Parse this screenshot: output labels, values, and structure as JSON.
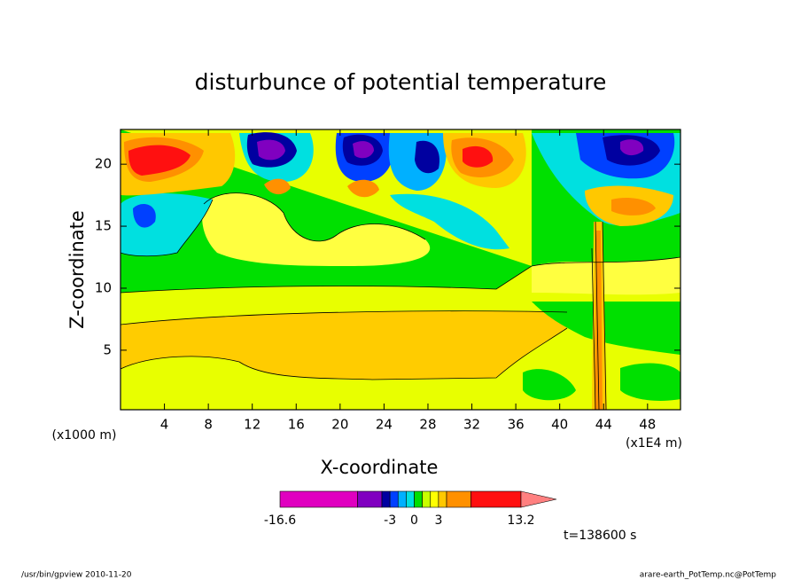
{
  "chart_data": {
    "type": "contour",
    "title": "disturbunce of potential temperature",
    "xlabel": "X-coordinate",
    "ylabel": "Z-coordinate",
    "xunit": "(x1E4 m)",
    "yunit": "(x1000 m)",
    "xlim": [
      0,
      51
    ],
    "xticks": [
      4,
      8,
      12,
      16,
      20,
      24,
      28,
      32,
      36,
      40,
      44,
      48
    ],
    "ylim": [
      0.2,
      22.8
    ],
    "yticks": [
      5,
      10,
      15,
      20
    ],
    "colorbar": {
      "levels": [
        -16.6,
        -7,
        -4,
        -3,
        -2,
        -1,
        0,
        1,
        2,
        3,
        4,
        7,
        13.2
      ],
      "colors": [
        "#e000c0",
        "#8000c0",
        "#0000a0",
        "#0040ff",
        "#00b0ff",
        "#00e0e0",
        "#00e000",
        "#c8ff00",
        "#ffff00",
        "#ffc800",
        "#ff9000",
        "#ff1010"
      ],
      "extend_color": "#ff8080",
      "ticks": [
        -16.6,
        -3,
        0,
        3,
        13.2
      ]
    },
    "time_label": "t=138600 s",
    "footer_left": "/usr/bin/gpview  2010-11-20",
    "footer_right": "arare-earth_PotTemp.nc@PotTemp"
  }
}
